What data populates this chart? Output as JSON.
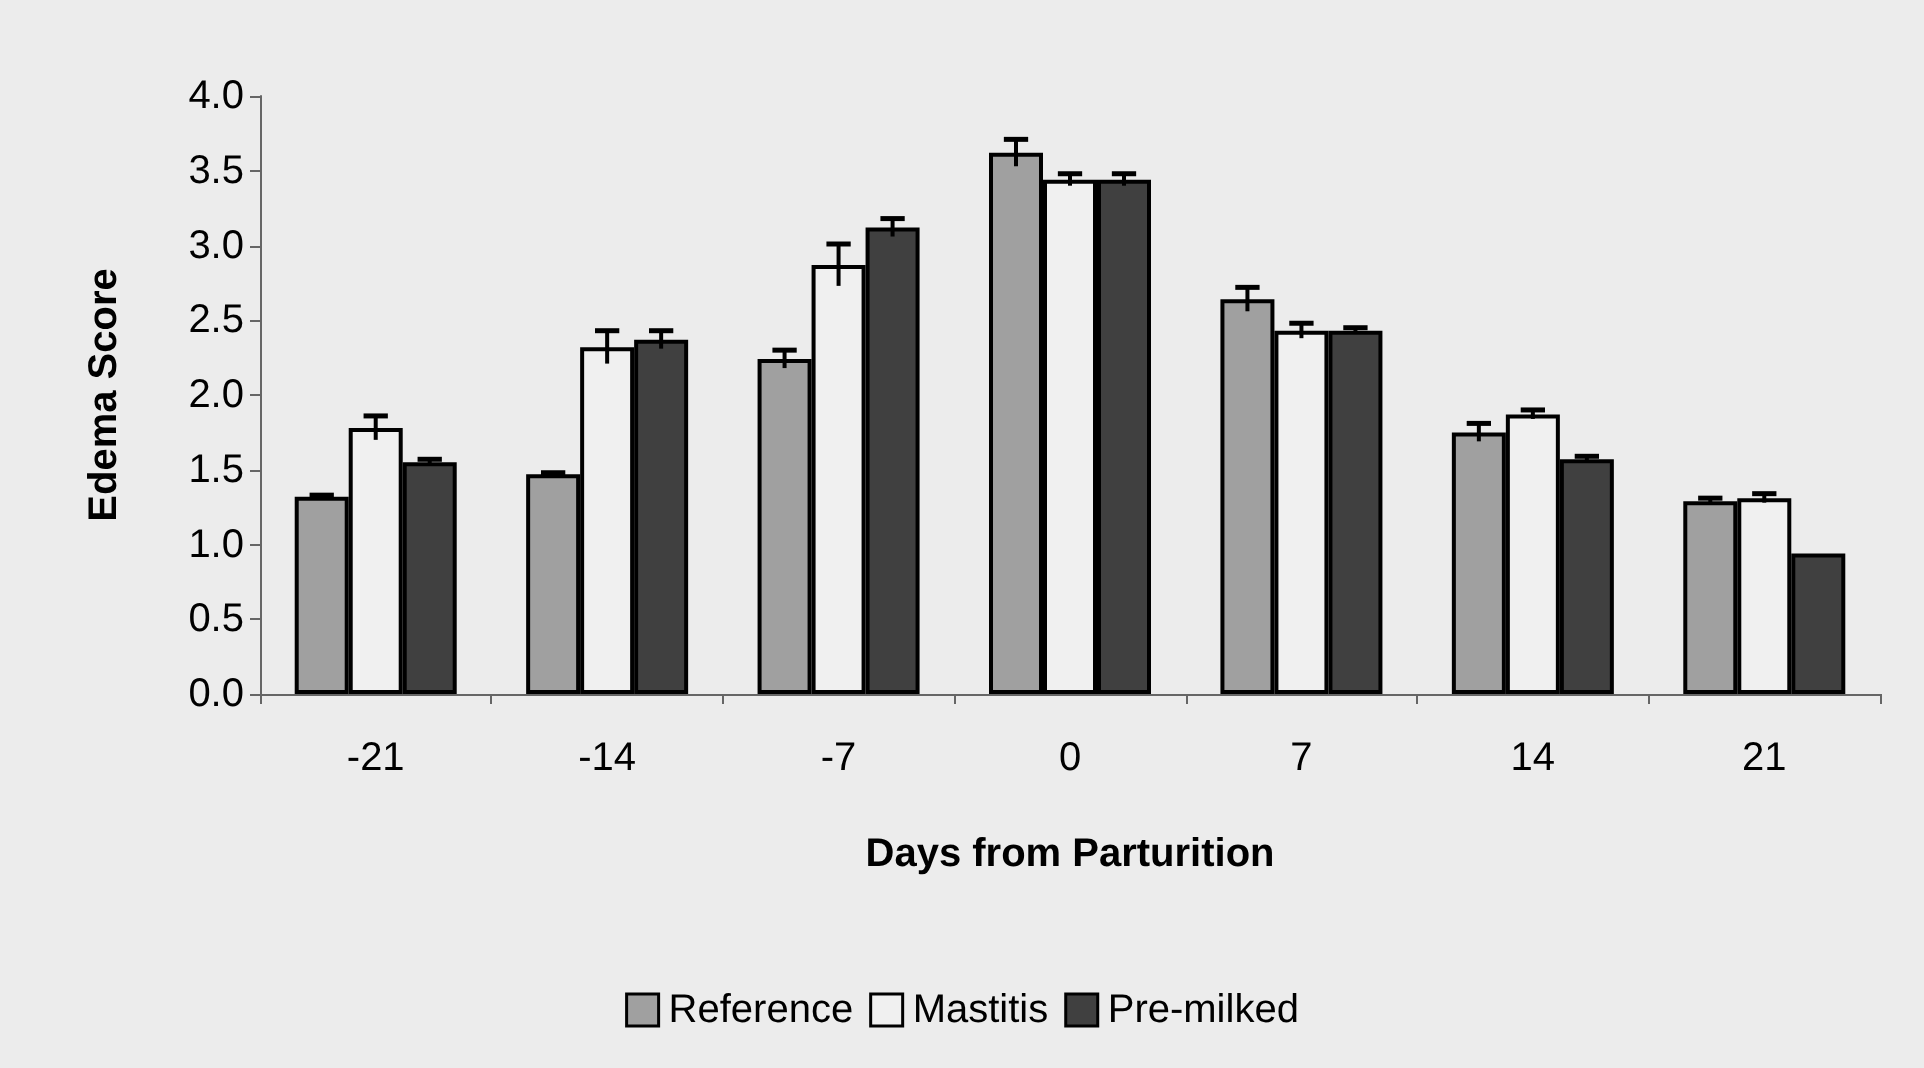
{
  "chart_data": {
    "type": "bar",
    "xlabel": "Days from Parturition",
    "ylabel": "Edema Score",
    "categories": [
      "-21",
      "-14",
      "-7",
      "0",
      "7",
      "14",
      "21"
    ],
    "series": [
      {
        "name": "Reference",
        "color": "#a0a0a0",
        "values": [
          1.32,
          1.47,
          2.24,
          3.62,
          2.64,
          1.75,
          1.29
        ],
        "errors": [
          0.01,
          0.01,
          0.06,
          0.09,
          0.08,
          0.06,
          0.02
        ]
      },
      {
        "name": "Mastitis",
        "color": "#f0f0f0",
        "values": [
          1.78,
          2.32,
          2.87,
          3.44,
          2.43,
          1.87,
          1.31
        ],
        "errors": [
          0.08,
          0.11,
          0.14,
          0.04,
          0.05,
          0.03,
          0.03
        ]
      },
      {
        "name": "Pre-milked",
        "color": "#404040",
        "values": [
          1.55,
          2.37,
          3.12,
          3.44,
          2.43,
          1.57,
          0.94
        ],
        "errors": [
          0.02,
          0.06,
          0.06,
          0.04,
          0.02,
          0.02,
          null
        ]
      }
    ],
    "ylim": [
      0,
      4
    ],
    "yticks": [
      {
        "value": 0,
        "label": "0.0"
      },
      {
        "value": 0.5,
        "label": "0.5"
      },
      {
        "value": 1,
        "label": "1.0"
      },
      {
        "value": 1.5,
        "label": "1.5"
      },
      {
        "value": 2,
        "label": "2.0"
      },
      {
        "value": 2.5,
        "label": "2.5"
      },
      {
        "value": 3,
        "label": "3.0"
      },
      {
        "value": 3.5,
        "label": "3.5"
      },
      {
        "value": 4,
        "label": "4.0"
      }
    ],
    "grid": false,
    "legend": "bottom"
  }
}
